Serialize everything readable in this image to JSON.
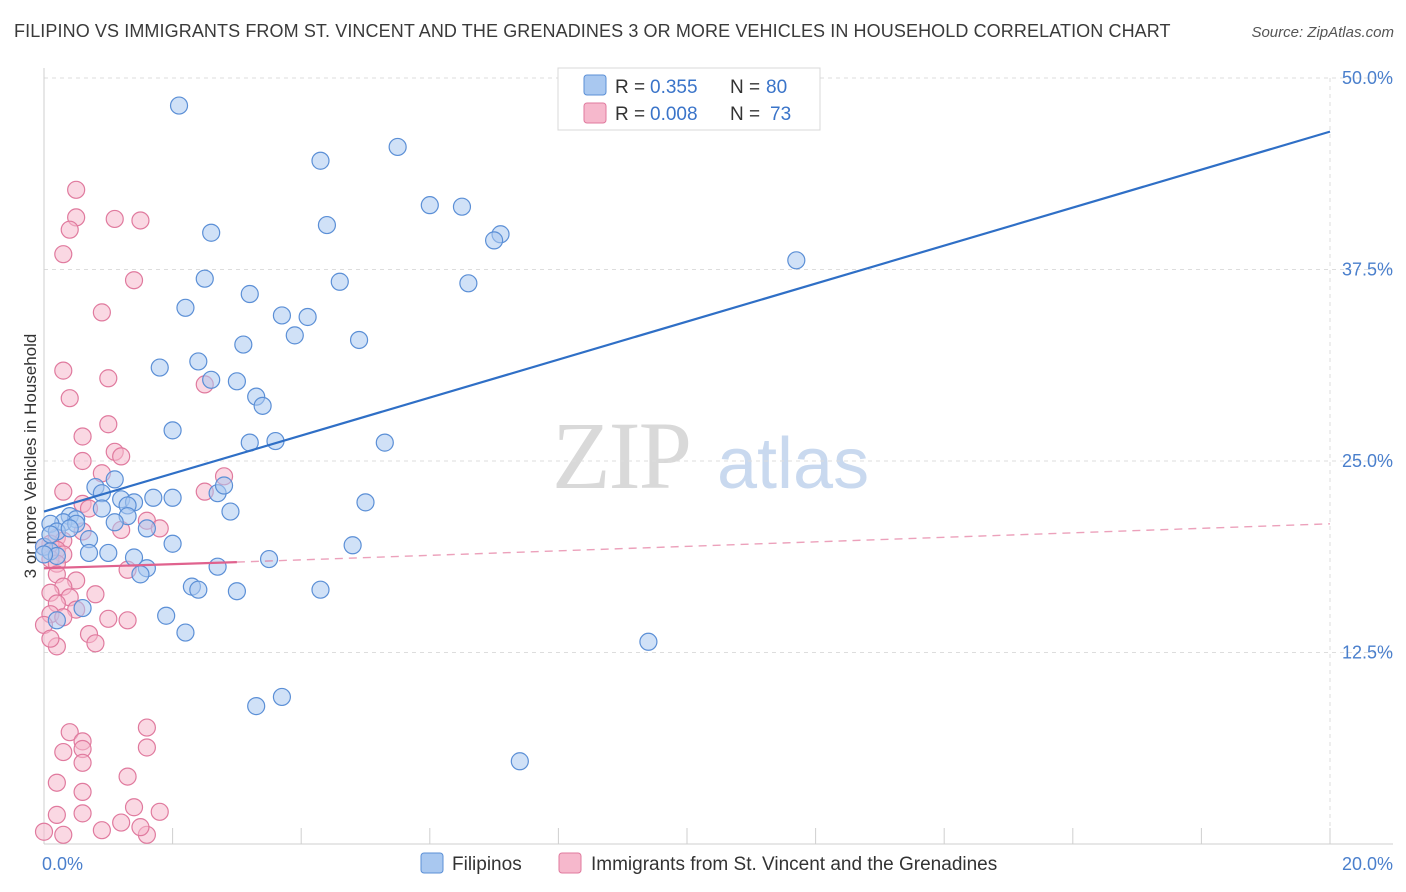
{
  "title": "FILIPINO VS IMMIGRANTS FROM ST. VINCENT AND THE GRENADINES 3 OR MORE VEHICLES IN HOUSEHOLD CORRELATION CHART",
  "source": "Source: ZipAtlas.com",
  "watermark": {
    "zip": "ZIP",
    "atlas": "atlas"
  },
  "colors": {
    "blue_fill": "#a9c8f0",
    "blue_stroke": "#5b8fd6",
    "blue_line": "#2f6fc6",
    "pink_fill": "#f6b8cc",
    "pink_stroke": "#e07a9e",
    "pink_line": "#e0628e",
    "tick_label": "#4a7fcc",
    "grid": "#dddddd"
  },
  "chart_data": {
    "type": "scatter",
    "title": "FILIPINO VS IMMIGRANTS FROM ST. VINCENT AND THE GRENADINES 3 OR MORE VEHICLES IN HOUSEHOLD CORRELATION CHART",
    "xlabel": "",
    "ylabel": "3 or more Vehicles in Household",
    "xlim": [
      0,
      20
    ],
    "ylim": [
      0,
      50
    ],
    "x_ticks": [
      {
        "value": 0,
        "label": "0.0%"
      },
      {
        "value": 20,
        "label": "20.0%"
      }
    ],
    "y_ticks": [
      {
        "value": 12.5,
        "label": "12.5%"
      },
      {
        "value": 25,
        "label": "25.0%"
      },
      {
        "value": 37.5,
        "label": "37.5%"
      },
      {
        "value": 50,
        "label": "50.0%"
      }
    ],
    "grid": true,
    "legend": {
      "placement": "top-center",
      "entries": [
        {
          "r_label": "R =",
          "r_value": "0.355",
          "n_label": "N =",
          "n_value": "80"
        },
        {
          "r_label": "R =",
          "r_value": "0.008",
          "n_label": "N =",
          "n_value": "73"
        }
      ]
    },
    "bottom_legend": [
      "Filipinos",
      "Immigrants from St. Vincent and the Grenadines"
    ],
    "series": [
      {
        "name": "Filipinos",
        "trend": {
          "x": [
            0,
            20
          ],
          "y": [
            21.7,
            46.5
          ],
          "style": "solid"
        },
        "points": [
          [
            2.1,
            48.2
          ],
          [
            5.5,
            45.5
          ],
          [
            4.3,
            44.6
          ],
          [
            6.0,
            41.7
          ],
          [
            6.5,
            41.6
          ],
          [
            2.6,
            39.9
          ],
          [
            4.4,
            40.4
          ],
          [
            7.1,
            39.8
          ],
          [
            7.0,
            39.4
          ],
          [
            2.5,
            36.9
          ],
          [
            4.6,
            36.7
          ],
          [
            6.6,
            36.6
          ],
          [
            3.2,
            35.9
          ],
          [
            2.2,
            35.0
          ],
          [
            3.7,
            34.5
          ],
          [
            4.1,
            34.4
          ],
          [
            3.9,
            33.2
          ],
          [
            4.9,
            32.9
          ],
          [
            3.1,
            32.6
          ],
          [
            2.4,
            31.5
          ],
          [
            1.8,
            31.1
          ],
          [
            2.6,
            30.3
          ],
          [
            3.0,
            30.2
          ],
          [
            3.3,
            29.2
          ],
          [
            3.4,
            28.6
          ],
          [
            2.0,
            27.0
          ],
          [
            3.2,
            26.2
          ],
          [
            3.6,
            26.3
          ],
          [
            5.3,
            26.2
          ],
          [
            1.1,
            23.8
          ],
          [
            0.8,
            23.3
          ],
          [
            0.9,
            22.9
          ],
          [
            2.0,
            22.6
          ],
          [
            1.2,
            22.5
          ],
          [
            1.7,
            22.6
          ],
          [
            1.4,
            22.3
          ],
          [
            1.3,
            22.1
          ],
          [
            2.7,
            22.9
          ],
          [
            2.8,
            23.4
          ],
          [
            5.0,
            22.3
          ],
          [
            0.9,
            21.9
          ],
          [
            2.9,
            21.7
          ],
          [
            1.3,
            21.4
          ],
          [
            0.4,
            21.4
          ],
          [
            0.5,
            21.2
          ],
          [
            0.3,
            21.0
          ],
          [
            0.5,
            20.9
          ],
          [
            1.1,
            21.0
          ],
          [
            1.6,
            20.6
          ],
          [
            0.1,
            20.9
          ],
          [
            0.2,
            20.4
          ],
          [
            0.4,
            20.6
          ],
          [
            0.7,
            19.9
          ],
          [
            2.0,
            19.6
          ],
          [
            4.8,
            19.5
          ],
          [
            0.0,
            19.4
          ],
          [
            0.1,
            19.1
          ],
          [
            0.2,
            18.8
          ],
          [
            0.7,
            19.0
          ],
          [
            1.0,
            19.0
          ],
          [
            1.4,
            18.7
          ],
          [
            3.5,
            18.6
          ],
          [
            1.6,
            18.0
          ],
          [
            2.7,
            18.1
          ],
          [
            1.5,
            17.6
          ],
          [
            2.3,
            16.8
          ],
          [
            2.4,
            16.6
          ],
          [
            3.0,
            16.5
          ],
          [
            4.3,
            16.6
          ],
          [
            0.6,
            15.4
          ],
          [
            0.2,
            14.6
          ],
          [
            1.9,
            14.9
          ],
          [
            2.2,
            13.8
          ],
          [
            11.7,
            38.1
          ],
          [
            9.4,
            13.2
          ],
          [
            3.7,
            9.6
          ],
          [
            3.3,
            9.0
          ],
          [
            7.4,
            5.4
          ],
          [
            0.1,
            20.2
          ],
          [
            0.0,
            18.9
          ]
        ]
      },
      {
        "name": "Immigrants from St. Vincent and the Grenadines",
        "trend": {
          "x": [
            0,
            3.0
          ],
          "y": [
            18.0,
            18.4
          ],
          "style": "solid",
          "extended": {
            "x": [
              3.0,
              20
            ],
            "y": [
              18.4,
              20.9
            ],
            "style": "dashed"
          }
        },
        "points": [
          [
            0.5,
            42.7
          ],
          [
            0.5,
            40.9
          ],
          [
            1.1,
            40.8
          ],
          [
            1.5,
            40.7
          ],
          [
            0.4,
            40.1
          ],
          [
            0.3,
            38.5
          ],
          [
            1.4,
            36.8
          ],
          [
            0.9,
            34.7
          ],
          [
            0.3,
            30.9
          ],
          [
            1.0,
            30.4
          ],
          [
            2.5,
            30.0
          ],
          [
            0.4,
            29.1
          ],
          [
            1.0,
            27.4
          ],
          [
            0.6,
            26.6
          ],
          [
            1.1,
            25.6
          ],
          [
            1.2,
            25.3
          ],
          [
            0.6,
            25.0
          ],
          [
            0.9,
            24.2
          ],
          [
            2.8,
            24.0
          ],
          [
            0.3,
            23.0
          ],
          [
            2.5,
            23.0
          ],
          [
            0.6,
            22.2
          ],
          [
            0.7,
            21.9
          ],
          [
            1.6,
            21.1
          ],
          [
            1.8,
            20.6
          ],
          [
            0.6,
            20.4
          ],
          [
            1.2,
            20.5
          ],
          [
            0.2,
            20.0
          ],
          [
            0.3,
            19.8
          ],
          [
            0.1,
            19.6
          ],
          [
            0.0,
            19.4
          ],
          [
            0.2,
            19.2
          ],
          [
            0.3,
            18.9
          ],
          [
            0.1,
            18.6
          ],
          [
            0.2,
            18.3
          ],
          [
            1.3,
            17.9
          ],
          [
            0.2,
            17.6
          ],
          [
            0.5,
            17.2
          ],
          [
            0.3,
            16.8
          ],
          [
            0.1,
            16.4
          ],
          [
            0.4,
            16.1
          ],
          [
            0.8,
            16.3
          ],
          [
            0.2,
            15.7
          ],
          [
            0.5,
            15.3
          ],
          [
            0.1,
            15.0
          ],
          [
            0.3,
            14.8
          ],
          [
            1.0,
            14.7
          ],
          [
            1.3,
            14.6
          ],
          [
            0.0,
            14.3
          ],
          [
            0.7,
            13.7
          ],
          [
            0.8,
            13.1
          ],
          [
            0.2,
            12.9
          ],
          [
            0.1,
            13.4
          ],
          [
            1.6,
            7.6
          ],
          [
            0.4,
            7.3
          ],
          [
            0.6,
            6.7
          ],
          [
            1.6,
            6.3
          ],
          [
            0.3,
            6.0
          ],
          [
            0.6,
            6.2
          ],
          [
            1.3,
            4.4
          ],
          [
            0.6,
            5.3
          ],
          [
            0.2,
            4.0
          ],
          [
            0.6,
            3.4
          ],
          [
            0.6,
            2.0
          ],
          [
            1.4,
            2.4
          ],
          [
            1.8,
            2.1
          ],
          [
            1.2,
            1.4
          ],
          [
            0.9,
            0.9
          ],
          [
            0.3,
            0.6
          ],
          [
            1.6,
            0.6
          ],
          [
            1.5,
            1.1
          ],
          [
            0.0,
            0.8
          ],
          [
            0.2,
            1.9
          ]
        ]
      }
    ]
  }
}
